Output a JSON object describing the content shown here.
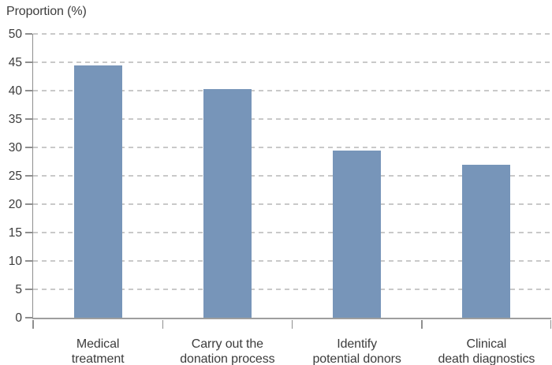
{
  "chart_data": {
    "type": "bar",
    "title": "Proportion (%)",
    "ylabel": "Proportion (%)",
    "xlabel": "",
    "categories": [
      [
        "Medical",
        "treatment"
      ],
      [
        "Carry out the",
        "donation process"
      ],
      [
        "Identify",
        "potential donors"
      ],
      [
        "Clinical",
        "death diagnostics"
      ]
    ],
    "values": [
      44.4,
      40.3,
      29.5,
      26.9
    ],
    "ylim": [
      0,
      50
    ],
    "ytick_step": 5,
    "yticks": [
      0,
      5,
      10,
      15,
      20,
      25,
      30,
      35,
      40,
      45,
      50
    ],
    "grid": "horizontal-dashed",
    "legend_position": "none",
    "colors": {
      "bar": "#7795b9",
      "gridline": "#c9c9c9",
      "axis": "#8f8f8f",
      "text": "#3c3c3c",
      "background": "#ffffff"
    }
  }
}
